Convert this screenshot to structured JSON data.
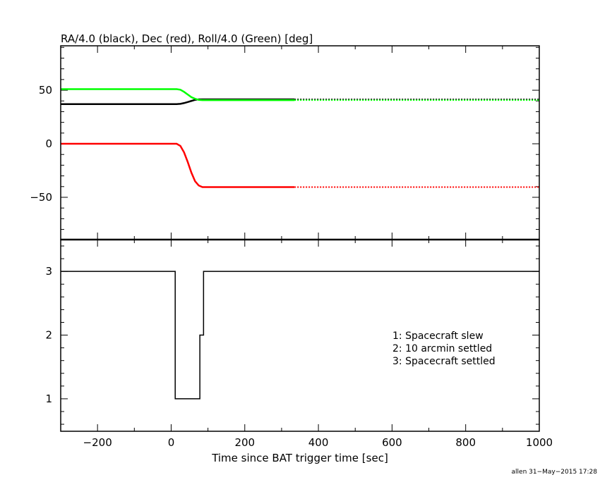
{
  "chart_data": [
    {
      "type": "line",
      "title": "RA/4.0 (black), Dec (red), Roll/4.0 (Green) [deg]",
      "xlim": [
        -300,
        1000
      ],
      "ylim": [
        -89.5,
        91.5
      ],
      "yticks": [
        -50,
        0,
        50
      ],
      "ytick_labels": [
        "−50",
        "0",
        "50"
      ],
      "dotted_after_x": 335,
      "x": [
        -300,
        15,
        25,
        35,
        45,
        55,
        65,
        75,
        85,
        335,
        1000
      ],
      "series": [
        {
          "name": "RA/4.0",
          "color": "#000000",
          "values": [
            37,
            37,
            37.3,
            38,
            39,
            40,
            41,
            41.5,
            41.5,
            41.5,
            41.5
          ]
        },
        {
          "name": "Dec",
          "color": "#ff0000",
          "values": [
            0,
            0,
            -2,
            -8,
            -17,
            -27,
            -35,
            -39,
            -40.5,
            -40.5,
            -40.5
          ]
        },
        {
          "name": "Roll/4.0",
          "color": "#00ff00",
          "values": [
            51,
            51,
            50.5,
            48.5,
            46,
            43.5,
            42,
            41,
            40.7,
            40.7,
            40.7
          ]
        }
      ]
    },
    {
      "type": "line",
      "step": true,
      "xlim": [
        -300,
        1000
      ],
      "ylim": [
        0.49,
        3.5
      ],
      "yticks": [
        1,
        2,
        3
      ],
      "ytick_labels": [
        "1",
        "2",
        "3"
      ],
      "xticks": [
        -200,
        0,
        200,
        400,
        600,
        800,
        1000
      ],
      "xtick_labels": [
        "−200",
        "0",
        "200",
        "400",
        "600",
        "800",
        "1000"
      ],
      "xlabel": "Time since BAT trigger time [sec]",
      "x": [
        -300,
        11,
        78,
        88,
        1000
      ],
      "values": [
        3,
        1,
        2,
        3,
        3
      ],
      "annotations": [
        "1: Spacecraft slew",
        "2: 10 arcmin settled",
        "3: Spacecraft settled"
      ]
    }
  ],
  "footer": "allen 31−May−2015 17:28"
}
